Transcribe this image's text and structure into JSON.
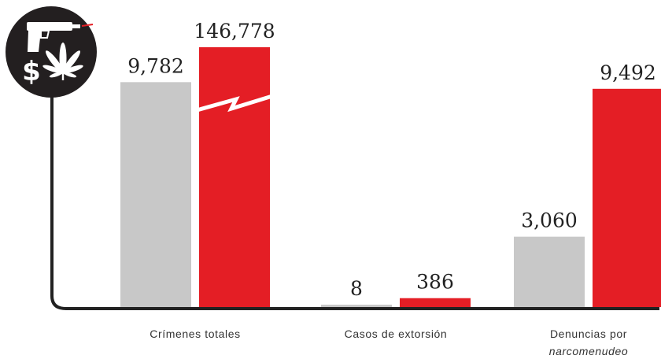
{
  "chart_data": {
    "type": "bar",
    "categories": [
      "Crímenes totales",
      "Casos de extorsión",
      "Denuncias por narcomenudeo"
    ],
    "category_lines": [
      [
        "Crímenes totales"
      ],
      [
        "Casos de extorsión"
      ],
      [
        "Denuncias por",
        "narcomenudeo"
      ]
    ],
    "series": [
      {
        "values": [
          9782,
          8,
          3060
        ],
        "color": "#c8c8c8"
      },
      {
        "values": [
          146778,
          386,
          9492
        ],
        "color": "#e41e25"
      }
    ],
    "value_labels": [
      [
        "9,782",
        "8",
        "3,060"
      ],
      [
        "146,778",
        "386",
        "9,492"
      ]
    ],
    "axis_broken": true,
    "ylim": [
      0,
      11300
    ],
    "grid": false,
    "icons": [
      "pistol-icon",
      "dollar-icon",
      "cannabis-leaf-icon"
    ],
    "axis_color": "#222222"
  }
}
